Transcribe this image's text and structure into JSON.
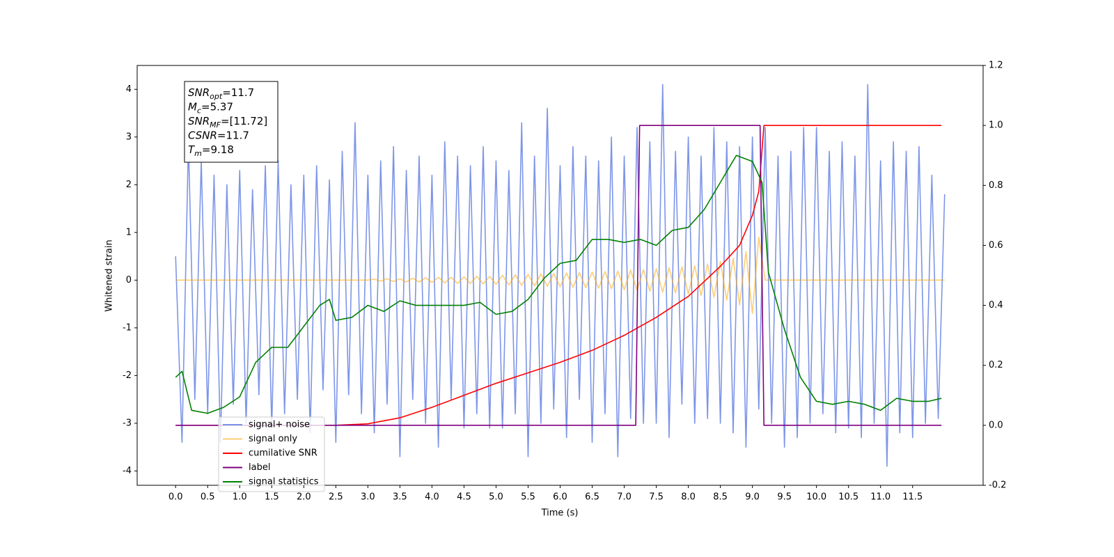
{
  "chart_data": {
    "type": "line",
    "xlabel": "Time (s)",
    "ylabel": "Whitened strain",
    "xlim": [
      -0.6,
      12.6
    ],
    "ylim": [
      -4.3,
      4.5
    ],
    "y2lim": [
      -0.2,
      1.2
    ],
    "xticks": [
      {
        "value": 0,
        "label": "0.0"
      },
      0.5,
      {
        "value": 1,
        "label": "1.0"
      },
      1.5,
      {
        "value": 2,
        "label": "2.0"
      },
      2.5,
      {
        "value": 3,
        "label": "3.0"
      },
      3.5,
      {
        "value": 4,
        "label": "4.0"
      },
      4.5,
      {
        "value": 5,
        "label": "5.0"
      },
      5.5,
      {
        "value": 6,
        "label": "6.0"
      },
      6.5,
      {
        "value": 7,
        "label": "7.0"
      },
      7.5,
      {
        "value": 8,
        "label": "8.0"
      },
      8.5,
      {
        "value": 9,
        "label": "9.0"
      },
      9.5,
      {
        "value": 10,
        "label": "10.0"
      },
      10.5,
      {
        "value": 11,
        "label": "11.0"
      },
      11.5
    ],
    "yticks": [
      -4,
      -3,
      -2,
      -1,
      0,
      1,
      2,
      3,
      4
    ],
    "y2ticks": [
      -0.2,
      {
        "value": 0,
        "label": "0.0"
      },
      0.2,
      0.4,
      0.6,
      0.8,
      {
        "value": 1,
        "label": "1.0"
      },
      1.2
    ],
    "annotation": [
      {
        "name": "SNR",
        "sub": "opt",
        "text": "=11.7"
      },
      {
        "name": "M",
        "sub": "c",
        "text": "=5.37"
      },
      {
        "name": "SNR",
        "sub": "MF",
        "text": "=[11.72]"
      },
      {
        "name": "CSNR",
        "text": "=11.7"
      },
      {
        "name": "T",
        "sub": "m",
        "text": "=9.18"
      }
    ],
    "series": [
      {
        "name": "signal+ noise",
        "color": "#6f8ae6",
        "opacity": 0.9,
        "x": [
          0,
          0.1,
          0.2,
          0.3,
          0.4,
          0.5,
          0.6,
          0.7,
          0.8,
          0.9,
          1,
          1.1,
          1.2,
          1.3,
          1.4,
          1.5,
          1.6,
          1.7,
          1.8,
          1.9,
          2,
          2.1,
          2.2,
          2.3,
          2.4,
          2.5,
          2.6,
          2.7,
          2.8,
          2.9,
          3,
          3.1,
          3.2,
          3.3,
          3.4,
          3.5,
          3.6,
          3.7,
          3.8,
          3.9,
          4,
          4.1,
          4.2,
          4.3,
          4.4,
          4.5,
          4.6,
          4.7,
          4.8,
          4.9,
          5,
          5.1,
          5.2,
          5.3,
          5.4,
          5.5,
          5.6,
          5.7,
          5.8,
          5.9,
          6,
          6.1,
          6.2,
          6.3,
          6.4,
          6.5,
          6.6,
          6.7,
          6.8,
          6.9,
          7,
          7.1,
          7.2,
          7.3,
          7.4,
          7.5,
          7.6,
          7.7,
          7.8,
          7.9,
          8,
          8.1,
          8.2,
          8.3,
          8.4,
          8.5,
          8.6,
          8.7,
          8.8,
          8.9,
          9,
          9.1,
          9.2,
          9.3,
          9.4,
          9.5,
          9.6,
          9.7,
          9.8,
          9.9,
          10,
          10.1,
          10.2,
          10.3,
          10.4,
          10.5,
          10.6,
          10.7,
          10.8,
          10.9,
          11,
          11.1,
          11.2,
          11.3,
          11.4,
          11.5,
          11.6,
          11.7,
          11.8,
          11.9,
          12
        ],
        "values": [
          0.5,
          -3.4,
          2.9,
          -2.5,
          2.5,
          -2.8,
          2.2,
          -3.4,
          2.0,
          -2.6,
          2.3,
          -3.0,
          1.9,
          -2.4,
          2.4,
          -3.1,
          2.5,
          -2.8,
          2.0,
          -2.5,
          2.2,
          -3.2,
          2.4,
          -2.3,
          2.1,
          -3.4,
          2.7,
          -2.4,
          3.3,
          -2.8,
          2.2,
          -3.2,
          2.5,
          -2.6,
          2.8,
          -3.7,
          2.3,
          -2.5,
          2.6,
          -3.0,
          2.2,
          -3.5,
          2.9,
          -2.5,
          2.6,
          -3.1,
          2.4,
          -2.8,
          2.8,
          -3.1,
          2.5,
          -3.1,
          2.3,
          -2.8,
          3.3,
          -3.7,
          2.6,
          -3.0,
          3.6,
          -2.7,
          2.4,
          -3.3,
          2.8,
          -2.5,
          2.6,
          -3.4,
          2.5,
          -2.8,
          3.0,
          -3.7,
          2.6,
          -2.9,
          3.2,
          -3.0,
          2.9,
          -3.0,
          4.1,
          -3.3,
          2.7,
          -2.6,
          3.0,
          -3.0,
          2.6,
          -2.9,
          3.2,
          -3.0,
          2.9,
          -3.2,
          2.8,
          -3.5,
          3.0,
          -2.7,
          3.2,
          -3.0,
          2.6,
          -3.5,
          2.7,
          -3.3,
          3.2,
          -3.0,
          3.2,
          -2.8,
          2.7,
          -3.2,
          2.9,
          -3.1,
          2.6,
          -3.3,
          4.1,
          -3.0,
          2.5,
          -3.9,
          2.9,
          -3.2,
          2.7,
          -3.3,
          2.8,
          -3.0,
          2.2,
          -2.9,
          1.8
        ]
      },
      {
        "name": "signal only",
        "color": "#ffa500",
        "opacity": 0.55,
        "x": [
          0,
          0.1,
          0.2,
          0.3,
          0.4,
          0.5,
          0.6,
          0.7,
          0.8,
          0.9,
          1,
          1.1,
          1.2,
          1.3,
          1.4,
          1.5,
          1.6,
          1.7,
          1.8,
          1.9,
          2,
          2.1,
          2.2,
          2.3,
          2.4,
          2.5,
          2.6,
          2.7,
          2.8,
          2.9,
          3,
          3.1,
          3.2,
          3.3,
          3.4,
          3.5,
          3.6,
          3.7,
          3.8,
          3.9,
          4,
          4.1,
          4.2,
          4.3,
          4.4,
          4.5,
          4.6,
          4.7,
          4.8,
          4.9,
          5,
          5.1,
          5.2,
          5.3,
          5.4,
          5.5,
          5.6,
          5.7,
          5.8,
          5.9,
          6,
          6.1,
          6.2,
          6.3,
          6.4,
          6.5,
          6.6,
          6.7,
          6.8,
          6.9,
          7,
          7.1,
          7.2,
          7.3,
          7.4,
          7.5,
          7.6,
          7.7,
          7.8,
          7.9,
          8,
          8.1,
          8.2,
          8.3,
          8.4,
          8.5,
          8.6,
          8.7,
          8.8,
          8.9,
          9,
          9.1,
          9.2,
          9.3,
          9.4,
          9.5,
          9.6,
          9.7,
          9.8,
          9.9,
          10,
          10.1,
          10.2,
          10.3,
          10.4,
          10.5,
          10.6,
          10.7,
          10.8,
          10.9,
          11,
          11.1,
          11.2,
          11.3,
          11.4,
          11.5,
          11.6,
          11.7,
          11.8,
          11.9,
          12
        ],
        "values": [
          0,
          0,
          0,
          0,
          0,
          0,
          0,
          0,
          0,
          0,
          0,
          0,
          0,
          0,
          0,
          0,
          0,
          0,
          0,
          0,
          0,
          0,
          0,
          0,
          0,
          0,
          0,
          0,
          0,
          0,
          0,
          0.02,
          -0.02,
          0.03,
          -0.03,
          0.03,
          -0.04,
          0.04,
          -0.04,
          0.05,
          -0.05,
          0.06,
          -0.06,
          0.06,
          -0.07,
          0.07,
          -0.07,
          0.08,
          -0.08,
          0.08,
          -0.09,
          0.1,
          -0.1,
          0.11,
          -0.11,
          0.12,
          -0.12,
          0.13,
          -0.13,
          0.14,
          -0.14,
          0.15,
          -0.15,
          0.16,
          -0.16,
          0.17,
          -0.17,
          0.18,
          -0.18,
          0.19,
          -0.2,
          0.21,
          -0.21,
          0.22,
          -0.23,
          0.24,
          -0.25,
          0.26,
          -0.27,
          0.28,
          -0.29,
          0.3,
          -0.32,
          0.34,
          -0.36,
          0.39,
          -0.42,
          0.46,
          -0.52,
          0.6,
          -0.7,
          0.9,
          0,
          0,
          0,
          0,
          0,
          0,
          0,
          0,
          0,
          0,
          0,
          0,
          0,
          0,
          0,
          0,
          0,
          0,
          0,
          0,
          0,
          0,
          0,
          0,
          0,
          0,
          0,
          0,
          0
        ]
      },
      {
        "name": "cumilative SNR",
        "color": "#ff0000",
        "opacity": 1,
        "axis": "y2",
        "x": [
          0,
          2.5,
          3,
          3.5,
          4,
          4.5,
          5,
          5.5,
          6,
          6.5,
          7,
          7.5,
          8,
          8.5,
          8.8,
          9,
          9.1,
          9.18,
          9.2,
          11.95
        ],
        "values": [
          0,
          0,
          0.005,
          0.025,
          0.06,
          0.1,
          0.14,
          0.175,
          0.21,
          0.25,
          0.3,
          0.36,
          0.43,
          0.53,
          0.6,
          0.7,
          0.78,
          1,
          1,
          1
        ]
      },
      {
        "name": "label",
        "color": "#800080",
        "opacity": 1,
        "axis": "y2",
        "x": [
          0,
          7.18,
          7.24,
          9.12,
          9.18,
          11.95
        ],
        "values": [
          0,
          0,
          1,
          1,
          0,
          0
        ]
      },
      {
        "name": "signal statistics",
        "color": "#008000",
        "opacity": 1,
        "axis": "y2",
        "x": [
          0,
          0.1,
          0.25,
          0.5,
          0.75,
          1,
          1.25,
          1.5,
          1.75,
          2,
          2.25,
          2.4,
          2.5,
          2.75,
          3,
          3.25,
          3.5,
          3.75,
          4,
          4.25,
          4.5,
          4.75,
          5,
          5.25,
          5.5,
          5.75,
          6,
          6.25,
          6.5,
          6.75,
          7,
          7.25,
          7.5,
          7.75,
          8,
          8.25,
          8.5,
          8.75,
          9,
          9.15,
          9.25,
          9.5,
          9.75,
          10,
          10.25,
          10.5,
          10.75,
          11,
          11.25,
          11.5,
          11.75,
          11.95
        ],
        "values": [
          0.16,
          0.18,
          0.05,
          0.04,
          0.06,
          0.095,
          0.21,
          0.26,
          0.26,
          0.33,
          0.4,
          0.42,
          0.35,
          0.36,
          0.4,
          0.38,
          0.415,
          0.4,
          0.4,
          0.4,
          0.4,
          0.41,
          0.37,
          0.38,
          0.42,
          0.49,
          0.54,
          0.55,
          0.62,
          0.62,
          0.61,
          0.62,
          0.6,
          0.65,
          0.66,
          0.72,
          0.81,
          0.9,
          0.88,
          0.81,
          0.51,
          0.32,
          0.16,
          0.08,
          0.07,
          0.08,
          0.07,
          0.05,
          0.09,
          0.08,
          0.08,
          0.09
        ]
      }
    ]
  }
}
